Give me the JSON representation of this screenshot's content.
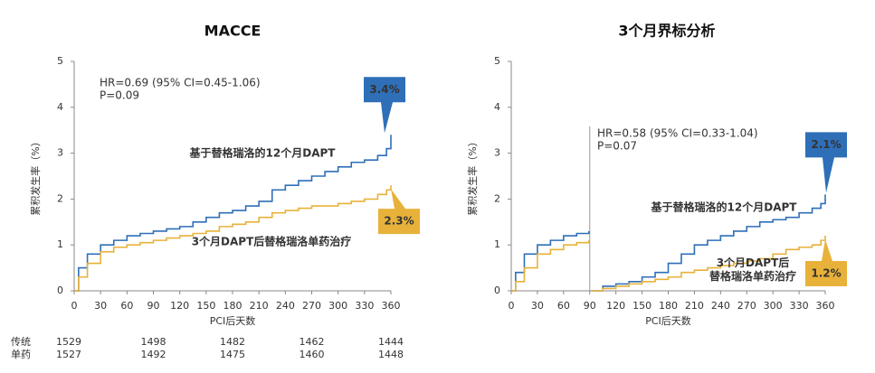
{
  "chart_data": [
    {
      "type": "line",
      "step": true,
      "title": "MACCE",
      "x_label": "PCI后天数",
      "y_label": "累积发生率（%）",
      "annotations": [
        "HR=0.69 (95% CI=0.45-1.06)",
        "P=0.09"
      ],
      "xlim": [
        0,
        360
      ],
      "xticks": [
        0,
        30,
        60,
        90,
        120,
        150,
        180,
        210,
        240,
        270,
        300,
        330,
        360
      ],
      "ylim": [
        0,
        5
      ],
      "yticks": [
        0,
        1,
        2,
        3,
        4,
        5
      ],
      "x": [
        0,
        5,
        15,
        30,
        45,
        60,
        75,
        90,
        105,
        120,
        135,
        150,
        165,
        180,
        195,
        210,
        225,
        240,
        255,
        270,
        285,
        300,
        315,
        330,
        345,
        355,
        360
      ],
      "series": [
        {
          "name": "基于替格瑞洛的12个月DAPT",
          "color": "#2e6fb7",
          "end_label": "3.4%",
          "values": [
            0,
            0.5,
            0.8,
            1.0,
            1.1,
            1.2,
            1.25,
            1.3,
            1.35,
            1.4,
            1.5,
            1.6,
            1.7,
            1.75,
            1.85,
            1.95,
            2.2,
            2.3,
            2.4,
            2.5,
            2.6,
            2.7,
            2.8,
            2.85,
            2.95,
            3.1,
            3.4
          ]
        },
        {
          "name": "3个月DAPT后替格瑞洛单药治疗",
          "color": "#e8b23a",
          "end_label": "2.3%",
          "values": [
            0,
            0.3,
            0.6,
            0.85,
            0.95,
            1.0,
            1.05,
            1.1,
            1.15,
            1.2,
            1.25,
            1.3,
            1.4,
            1.45,
            1.5,
            1.6,
            1.7,
            1.75,
            1.8,
            1.85,
            1.85,
            1.9,
            1.95,
            2.0,
            2.1,
            2.2,
            2.3
          ]
        }
      ],
      "risk_table": {
        "x": [
          0,
          90,
          180,
          270,
          360
        ],
        "rows": [
          {
            "label": "传统",
            "values": [
              1529,
              1498,
              1482,
              1462,
              1444
            ]
          },
          {
            "label": "单药",
            "values": [
              1527,
              1492,
              1475,
              1460,
              1448
            ]
          }
        ]
      }
    },
    {
      "type": "line",
      "step": true,
      "title": "3个月界标分析",
      "x_label": "PCI后天数",
      "y_label": "累积发生率（%）",
      "annotations": [
        "HR=0.58 (95% CI=0.33-1.04)",
        "P=0.07"
      ],
      "landmark": 90,
      "xlim": [
        0,
        360
      ],
      "xticks": [
        0,
        30,
        60,
        90,
        120,
        150,
        180,
        210,
        240,
        270,
        300,
        330,
        360
      ],
      "ylim": [
        0,
        5
      ],
      "yticks": [
        0,
        1,
        2,
        3,
        4,
        5
      ],
      "x": [
        0,
        5,
        15,
        30,
        45,
        60,
        75,
        89,
        90,
        92,
        105,
        120,
        135,
        150,
        165,
        180,
        195,
        210,
        225,
        240,
        255,
        270,
        285,
        300,
        315,
        330,
        345,
        355,
        360
      ],
      "series": [
        {
          "name": "基于替格瑞洛的12个月DAPT",
          "color": "#2e6fb7",
          "end_label": "2.1%",
          "values": [
            0,
            0.4,
            0.8,
            1.0,
            1.1,
            1.2,
            1.25,
            1.3,
            null,
            0.0,
            0.1,
            0.15,
            0.2,
            0.3,
            0.4,
            0.6,
            0.8,
            1.0,
            1.1,
            1.2,
            1.3,
            1.4,
            1.5,
            1.55,
            1.6,
            1.7,
            1.8,
            1.9,
            2.1
          ]
        },
        {
          "name": [
            "3个月DAPT后",
            "替格瑞洛单药治疗"
          ],
          "color": "#e8b23a",
          "end_label": "1.2%",
          "values": [
            0,
            0.2,
            0.5,
            0.8,
            0.9,
            1.0,
            1.05,
            1.1,
            null,
            0.0,
            0.05,
            0.1,
            0.15,
            0.2,
            0.25,
            0.3,
            0.4,
            0.45,
            0.5,
            0.55,
            0.6,
            0.65,
            0.7,
            0.8,
            0.9,
            0.95,
            1.0,
            1.1,
            1.2
          ]
        }
      ]
    }
  ]
}
